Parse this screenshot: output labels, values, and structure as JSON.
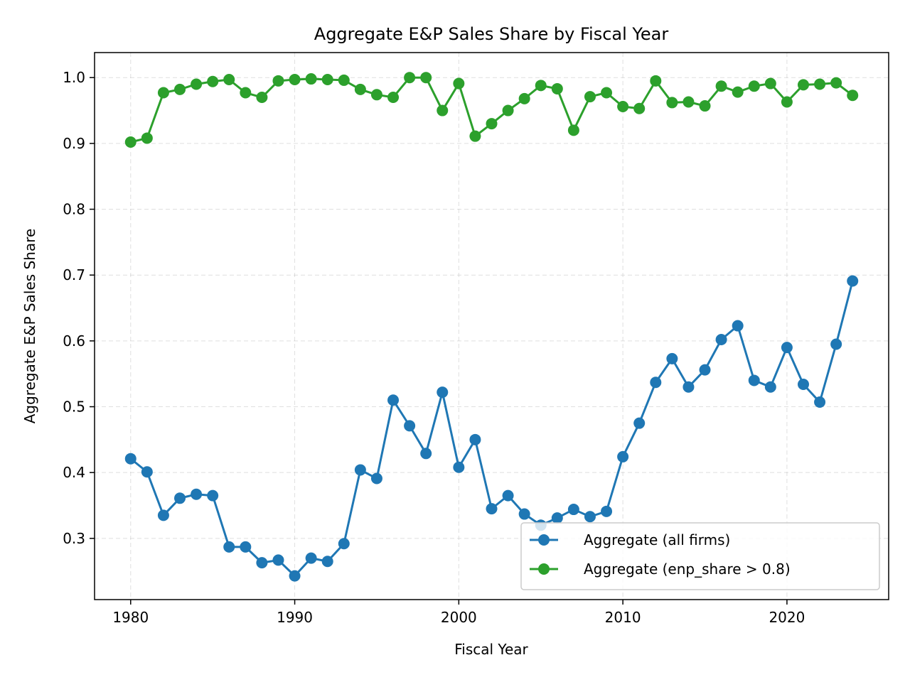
{
  "chart_data": {
    "type": "line",
    "title": "Aggregate E&P Sales Share by Fiscal Year",
    "xlabel": "Fiscal Year",
    "ylabel": "Aggregate E&P Sales Share",
    "xlim": [
      1977.8,
      2026.2
    ],
    "ylim": [
      0.207,
      1.038
    ],
    "xticks": [
      1980,
      1990,
      2000,
      2010,
      2020
    ],
    "yticks": [
      0.3,
      0.4,
      0.5,
      0.6,
      0.7,
      0.8,
      0.9,
      1.0
    ],
    "ytick_labels": [
      "0.3",
      "0.4",
      "0.5",
      "0.6",
      "0.7",
      "0.8",
      "0.9",
      "1.0"
    ],
    "grid": true,
    "legend_position": "lower-right",
    "x": [
      1980,
      1981,
      1982,
      1983,
      1984,
      1985,
      1986,
      1987,
      1988,
      1989,
      1990,
      1991,
      1992,
      1993,
      1994,
      1995,
      1996,
      1997,
      1998,
      1999,
      2000,
      2001,
      2002,
      2003,
      2004,
      2005,
      2006,
      2007,
      2008,
      2009,
      2010,
      2011,
      2012,
      2013,
      2014,
      2015,
      2016,
      2017,
      2018,
      2019,
      2020,
      2021,
      2022,
      2023,
      2024
    ],
    "series": [
      {
        "name": "Aggregate (all firms)",
        "color": "#1f77b4",
        "values": [
          0.421,
          0.401,
          0.335,
          0.361,
          0.367,
          0.365,
          0.287,
          0.287,
          0.263,
          0.267,
          0.243,
          0.27,
          0.265,
          0.292,
          0.404,
          0.391,
          0.51,
          0.471,
          0.429,
          0.522,
          0.408,
          0.45,
          0.345,
          0.365,
          0.337,
          0.32,
          0.331,
          0.344,
          0.333,
          0.341,
          0.424,
          0.475,
          0.537,
          0.573,
          0.53,
          0.556,
          0.602,
          0.623,
          0.54,
          0.53,
          0.59,
          0.534,
          0.507,
          0.595,
          0.691
        ]
      },
      {
        "name": "Aggregate (enp_share > 0.8)",
        "color": "#2ca02c",
        "values": [
          0.902,
          0.908,
          0.977,
          0.982,
          0.99,
          0.994,
          0.997,
          0.977,
          0.97,
          0.995,
          0.997,
          0.998,
          0.997,
          0.996,
          0.982,
          0.974,
          0.97,
          1.0,
          1.0,
          0.95,
          0.991,
          0.911,
          0.93,
          0.95,
          0.968,
          0.988,
          0.983,
          0.92,
          0.971,
          0.977,
          0.956,
          0.953,
          0.995,
          0.962,
          0.963,
          0.957,
          0.987,
          0.978,
          0.987,
          0.991,
          0.963,
          0.989,
          0.99,
          0.992,
          0.973
        ]
      }
    ]
  }
}
